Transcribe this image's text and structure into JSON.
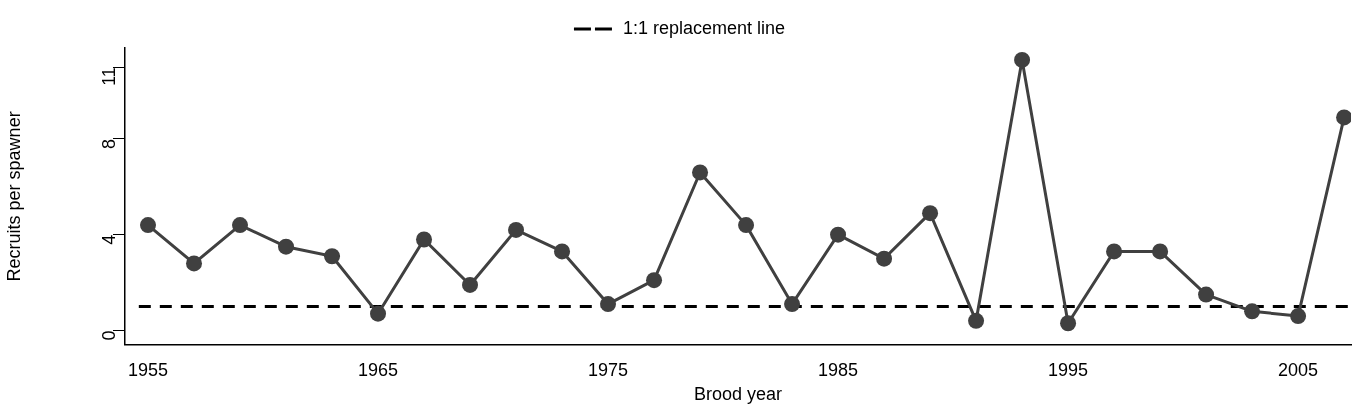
{
  "chart_data": {
    "type": "line",
    "xlabel": "Brood year",
    "ylabel": "Recruits per spawner",
    "x": [
      1955,
      1957,
      1959,
      1961,
      1963,
      1965,
      1967,
      1969,
      1971,
      1973,
      1975,
      1977,
      1979,
      1981,
      1983,
      1985,
      1987,
      1989,
      1991,
      1993,
      1995,
      1997,
      1999,
      2001,
      2003,
      2005,
      2007
    ],
    "series": [
      {
        "color": "#404040",
        "values": [
          4.4,
          2.8,
          4.4,
          3.5,
          3.1,
          0.7,
          3.8,
          1.9,
          4.2,
          3.3,
          1.1,
          2.1,
          6.6,
          4.4,
          1.1,
          4.0,
          3.0,
          4.9,
          0.4,
          11.3,
          0.3,
          3.3,
          3.3,
          1.5,
          0.8,
          0.6,
          8.9
        ]
      }
    ],
    "marker": "circle",
    "line_style": "solid",
    "xlim": [
      1954,
      2007.3
    ],
    "xticks": [
      1955,
      1965,
      1975,
      1985,
      1995,
      2005
    ],
    "ylim": [
      -0.6,
      11.8
    ],
    "yticks": [
      0,
      4,
      8,
      11
    ],
    "ref_lines": [
      {
        "axis": "y",
        "value": 1,
        "label": "1:1 replacement line",
        "color": "#000000",
        "line_style": "dashed"
      }
    ],
    "grid": false,
    "legend": "top"
  }
}
